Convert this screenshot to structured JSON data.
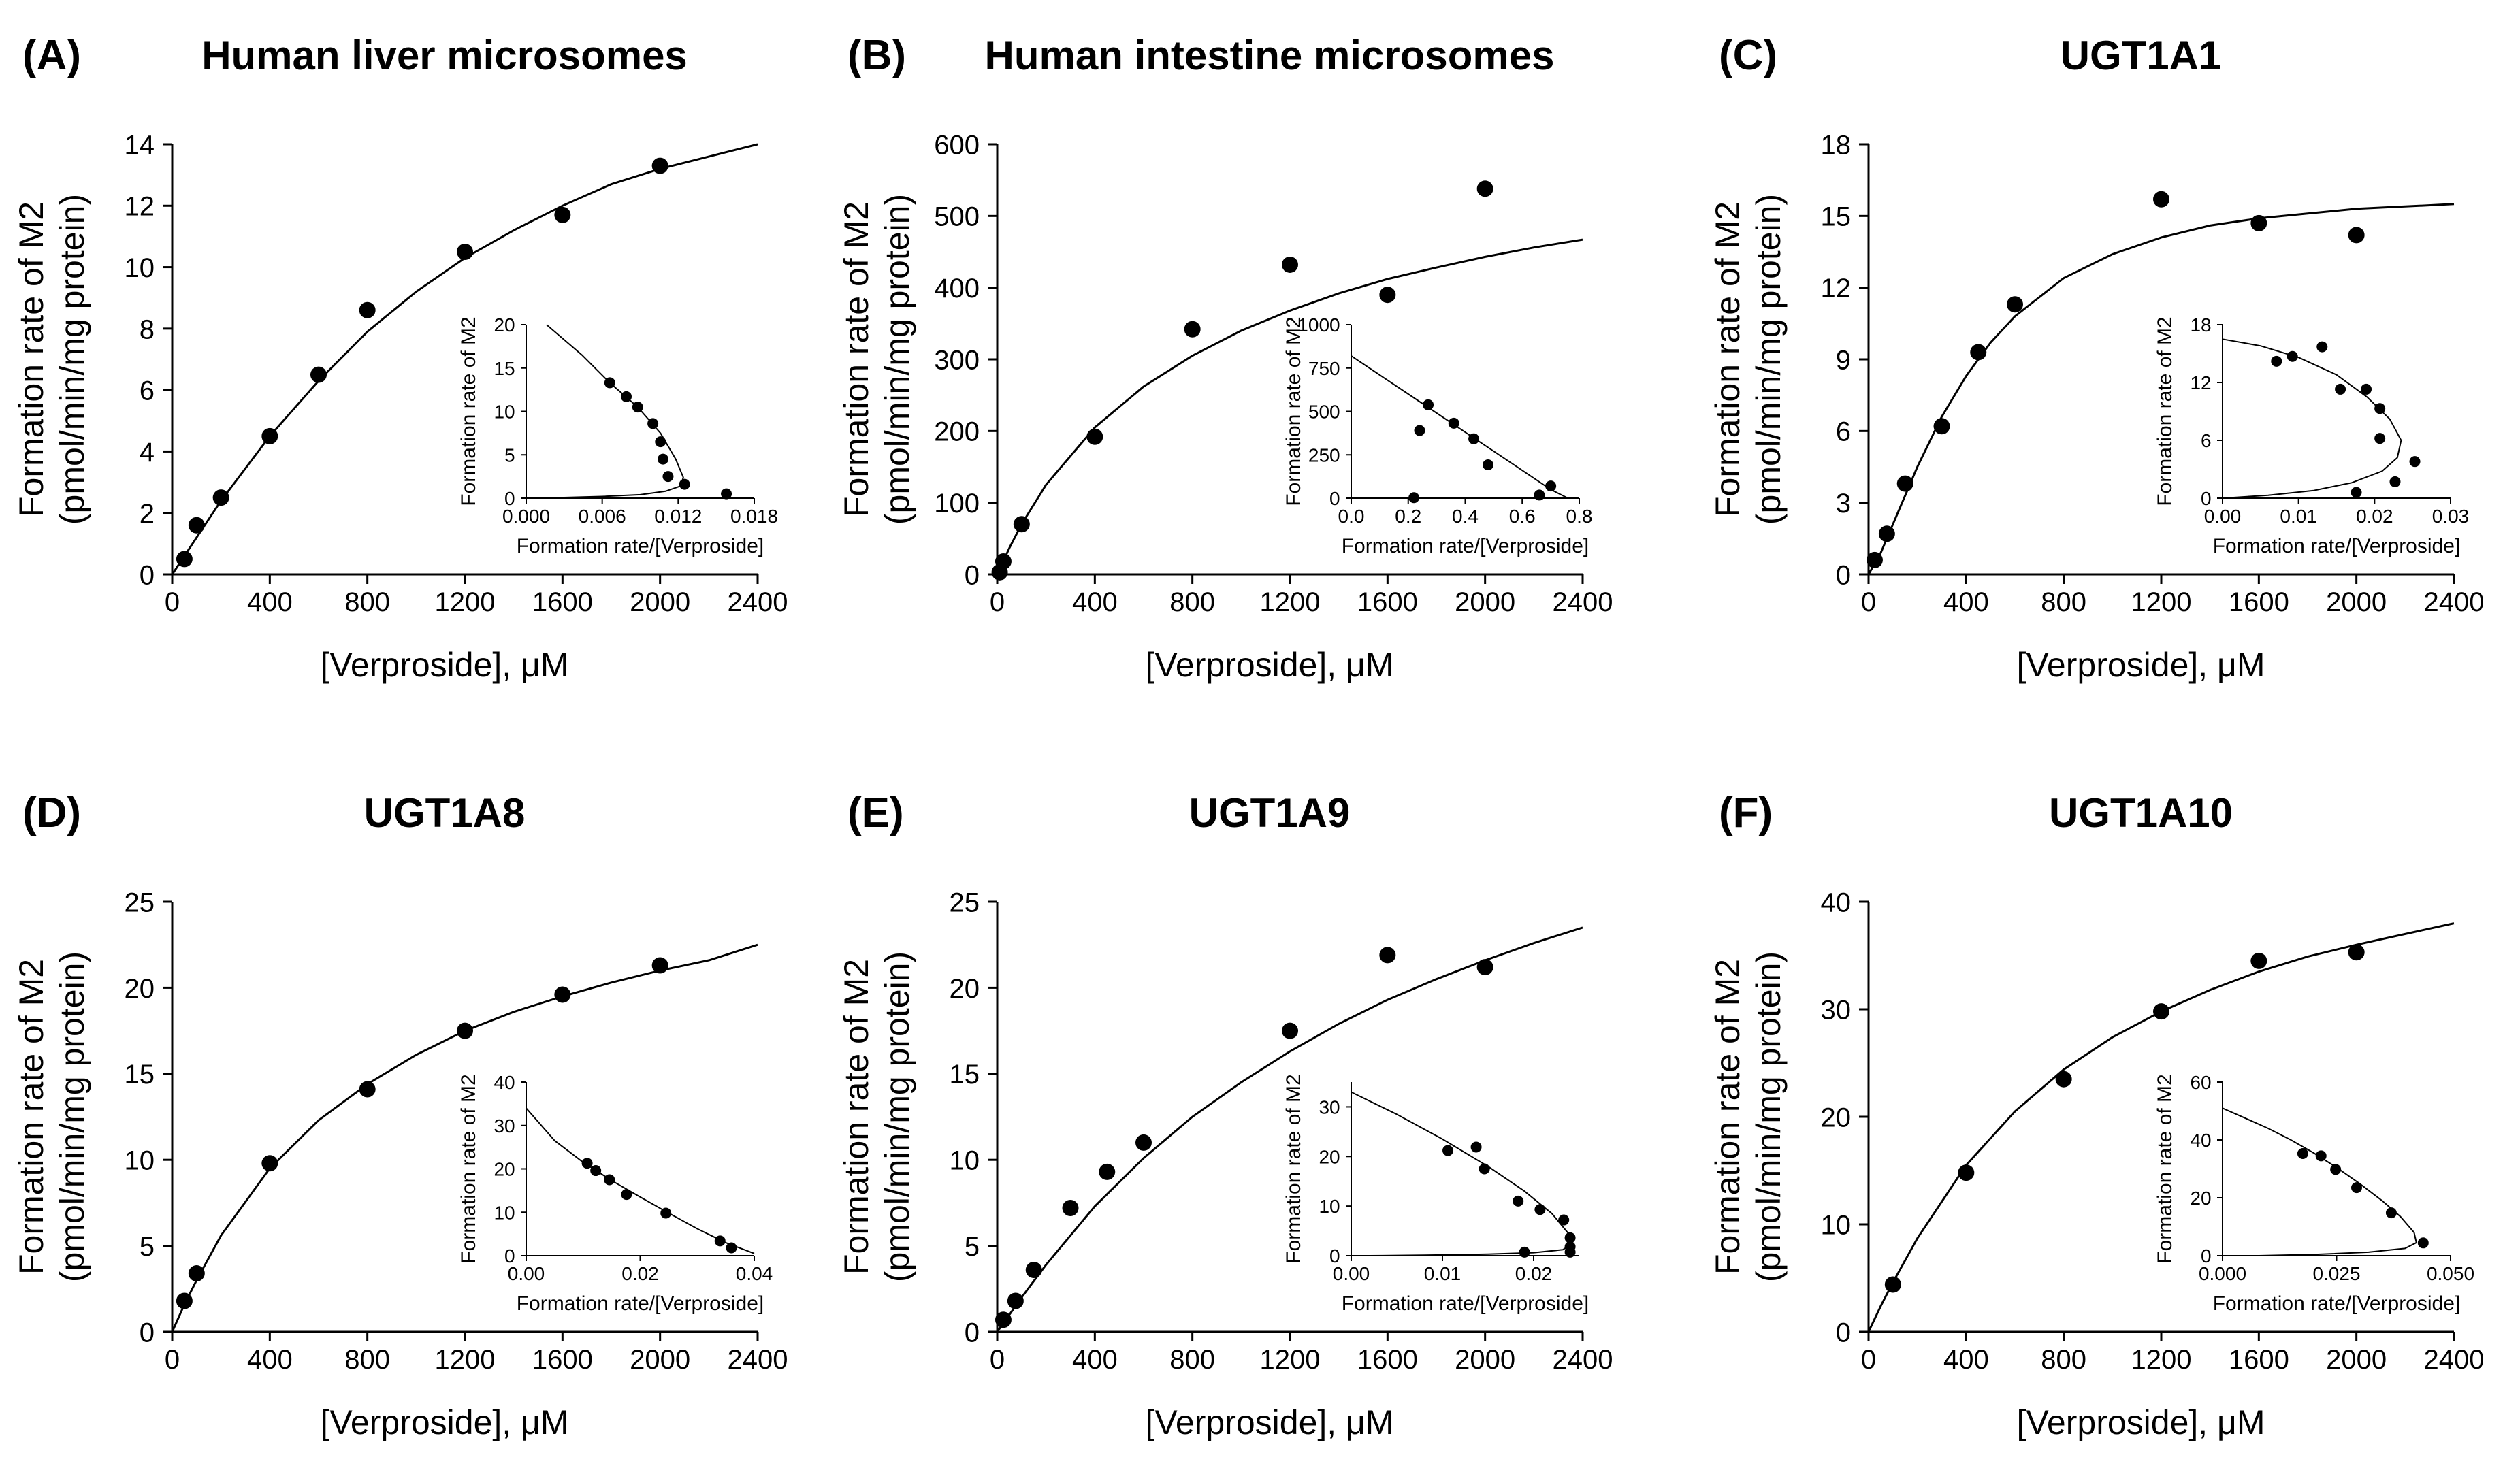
{
  "chart_data": [
    {
      "type": "scatter",
      "panel_label": "(A)",
      "title": "Human liver microsomes",
      "xlabel": "[Verproside], μM",
      "ylabel_line1": "Formation rate of M2",
      "ylabel_line2": "(pmol/min/mg protein)",
      "xlim": [
        0,
        2400
      ],
      "ylim": [
        0,
        14
      ],
      "xticks": [
        0,
        400,
        800,
        1200,
        1600,
        2000,
        2400
      ],
      "xtick_labels": [
        "0",
        "400",
        "800",
        "1200",
        "1600",
        "2000",
        "2400"
      ],
      "yticks": [
        0,
        2,
        4,
        6,
        8,
        10,
        12,
        14
      ],
      "ytick_labels": [
        "0",
        "2",
        "4",
        "6",
        "8",
        "10",
        "12",
        "14"
      ],
      "points": {
        "x": [
          50,
          100,
          200,
          400,
          600,
          800,
          1200,
          1600,
          2000
        ],
        "y": [
          0.5,
          1.6,
          2.5,
          4.5,
          6.5,
          8.6,
          10.5,
          11.7,
          13.3
        ]
      },
      "fit_curve": {
        "x": [
          0,
          100,
          200,
          400,
          600,
          800,
          1000,
          1200,
          1400,
          1600,
          1800,
          2000,
          2200,
          2400
        ],
        "y": [
          0,
          1.2,
          2.4,
          4.5,
          6.3,
          7.9,
          9.2,
          10.3,
          11.2,
          12.0,
          12.7,
          13.2,
          13.6,
          14.0
        ]
      },
      "inset": {
        "xlabel": "Formation rate/[Verproside]",
        "ylabel": "Formation rate of M2",
        "xlim": [
          0,
          0.018
        ],
        "ylim": [
          0,
          20
        ],
        "xticks": [
          0,
          0.006,
          0.012,
          0.018
        ],
        "xtick_labels": [
          "0.000",
          "0.006",
          "0.012",
          "0.018"
        ],
        "yticks": [
          0,
          5,
          10,
          15,
          20
        ],
        "ytick_labels": [
          "0",
          "5",
          "10",
          "15",
          "20"
        ],
        "points": {
          "x": [
            0.0066,
            0.0079,
            0.0088,
            0.01,
            0.0106,
            0.0108,
            0.0112,
            0.0125,
            0.0158
          ],
          "y": [
            13.3,
            11.7,
            10.5,
            8.6,
            6.5,
            4.5,
            2.5,
            1.6,
            0.5
          ]
        },
        "fit_curve": {
          "x": [
            0.0016,
            0.0044,
            0.0066,
            0.0088,
            0.0106,
            0.0118,
            0.0124,
            0.0122,
            0.011,
            0.009,
            0.006,
            0.003,
            0.001
          ],
          "y": [
            20,
            16.5,
            13.3,
            10.5,
            7.5,
            4.5,
            2.4,
            1.4,
            0.8,
            0.4,
            0.2,
            0.08,
            0
          ]
        }
      }
    },
    {
      "type": "scatter",
      "panel_label": "(B)",
      "title": "Human intestine microsomes",
      "xlabel": "[Verproside], μM",
      "ylabel_line1": "Formation rate of M2",
      "ylabel_line2": "(pmol/min/mg protein)",
      "xlim": [
        0,
        2400
      ],
      "ylim": [
        0,
        600
      ],
      "xticks": [
        0,
        400,
        800,
        1200,
        1600,
        2000,
        2400
      ],
      "xtick_labels": [
        "0",
        "400",
        "800",
        "1200",
        "1600",
        "2000",
        "2400"
      ],
      "yticks": [
        0,
        100,
        200,
        300,
        400,
        500,
        600
      ],
      "ytick_labels": [
        "0",
        "100",
        "200",
        "300",
        "400",
        "500",
        "600"
      ],
      "points": {
        "x": [
          10,
          25,
          100,
          400,
          800,
          1200,
          1600,
          2000
        ],
        "y": [
          3,
          18,
          70,
          192,
          342,
          432,
          390,
          538
        ]
      },
      "fit_curve": {
        "x": [
          0,
          50,
          100,
          200,
          400,
          600,
          800,
          1000,
          1200,
          1400,
          1600,
          1800,
          2000,
          2200,
          2400
        ],
        "y": [
          0,
          37,
          70,
          125,
          205,
          262,
          305,
          340,
          368,
          392,
          412,
          428,
          443,
          456,
          467
        ]
      },
      "inset": {
        "xlabel": "Formation rate/[Verproside]",
        "ylabel": "Formation rate of M2",
        "xlim": [
          0,
          0.8
        ],
        "ylim": [
          0,
          1000
        ],
        "xticks": [
          0,
          0.2,
          0.4,
          0.6,
          0.8
        ],
        "xtick_labels": [
          "0.0",
          "0.2",
          "0.4",
          "0.6",
          "0.8"
        ],
        "yticks": [
          0,
          250,
          500,
          750,
          1000
        ],
        "ytick_labels": [
          "0",
          "250",
          "500",
          "750",
          "1000"
        ],
        "points": {
          "x": [
            0.22,
            0.24,
            0.27,
            0.36,
            0.43,
            0.48,
            0.66,
            0.7
          ],
          "y": [
            3,
            390,
            538,
            432,
            342,
            192,
            18,
            70
          ]
        },
        "fit_curve": {
          "x": [
            0,
            0.1,
            0.2,
            0.3,
            0.4,
            0.5,
            0.6,
            0.7,
            0.76
          ],
          "y": [
            820,
            710,
            600,
            490,
            380,
            270,
            160,
            50,
            0
          ]
        }
      }
    },
    {
      "type": "scatter",
      "panel_label": "(C)",
      "title": "UGT1A1",
      "xlabel": "[Verproside], μM",
      "ylabel_line1": "Formation rate of M2",
      "ylabel_line2": "(pmol/min/mg protein)",
      "xlim": [
        0,
        2400
      ],
      "ylim": [
        0,
        18
      ],
      "xticks": [
        0,
        400,
        800,
        1200,
        1600,
        2000,
        2400
      ],
      "xtick_labels": [
        "0",
        "400",
        "800",
        "1200",
        "1600",
        "2000",
        "2400"
      ],
      "yticks": [
        0,
        3,
        6,
        9,
        12,
        15,
        18
      ],
      "ytick_labels": [
        "0",
        "3",
        "6",
        "9",
        "12",
        "15",
        "18"
      ],
      "points": {
        "x": [
          25,
          75,
          150,
          300,
          450,
          600,
          1200,
          1600,
          2000
        ],
        "y": [
          0.6,
          1.7,
          3.8,
          6.2,
          9.3,
          11.3,
          15.7,
          14.7,
          14.2
        ]
      },
      "fit_curve": {
        "x": [
          0,
          50,
          100,
          150,
          200,
          300,
          400,
          500,
          600,
          800,
          1000,
          1200,
          1400,
          1600,
          1800,
          2000,
          2200,
          2400
        ],
        "y": [
          0,
          0.9,
          2.1,
          3.3,
          4.5,
          6.6,
          8.3,
          9.7,
          10.8,
          12.4,
          13.4,
          14.1,
          14.6,
          14.9,
          15.1,
          15.3,
          15.4,
          15.5
        ]
      },
      "inset": {
        "xlabel": "Formation rate/[Verproside]",
        "ylabel": "Formation rate of M2",
        "xlim": [
          0,
          0.03
        ],
        "ylim": [
          0,
          18
        ],
        "xticks": [
          0,
          0.01,
          0.02,
          0.03
        ],
        "xtick_labels": [
          "0.00",
          "0.01",
          "0.02",
          "0.03"
        ],
        "yticks": [
          0,
          6,
          12,
          18
        ],
        "ytick_labels": [
          "0",
          "6",
          "12",
          "18"
        ],
        "points": {
          "x": [
            0.0071,
            0.0092,
            0.0131,
            0.0155,
            0.0189,
            0.0207,
            0.0207,
            0.0227,
            0.0253,
            0.0176
          ],
          "y": [
            14.2,
            14.7,
            15.7,
            11.3,
            11.3,
            9.3,
            6.2,
            1.7,
            3.8,
            0.6
          ]
        },
        "fit_curve": {
          "x": [
            0,
            0.005,
            0.01,
            0.015,
            0.019,
            0.022,
            0.0235,
            0.023,
            0.021,
            0.017,
            0.012,
            0.006,
            0.002,
            0
          ],
          "y": [
            16.5,
            15.8,
            14.6,
            12.8,
            10.5,
            8.2,
            6,
            4.2,
            2.8,
            1.6,
            0.8,
            0.3,
            0.1,
            0
          ]
        }
      }
    },
    {
      "type": "scatter",
      "panel_label": "(D)",
      "title": "UGT1A8",
      "xlabel": "[Verproside], μM",
      "ylabel_line1": "Formation rate of M2",
      "ylabel_line2": "(pmol/min/mg protein)",
      "xlim": [
        0,
        2400
      ],
      "ylim": [
        0,
        25
      ],
      "xticks": [
        0,
        400,
        800,
        1200,
        1600,
        2000,
        2400
      ],
      "xtick_labels": [
        "0",
        "400",
        "800",
        "1200",
        "1600",
        "2000",
        "2400"
      ],
      "yticks": [
        0,
        5,
        10,
        15,
        20,
        25
      ],
      "ytick_labels": [
        "0",
        "5",
        "10",
        "15",
        "20",
        "25"
      ],
      "points": {
        "x": [
          50,
          100,
          400,
          800,
          1200,
          1600,
          2000
        ],
        "y": [
          1.8,
          3.4,
          9.8,
          14.1,
          17.5,
          19.6,
          21.3
        ]
      },
      "fit_curve": {
        "x": [
          0,
          50,
          100,
          200,
          400,
          600,
          800,
          1000,
          1200,
          1400,
          1600,
          1800,
          2000,
          2200,
          2400
        ],
        "y": [
          0,
          1.6,
          3.0,
          5.6,
          9.5,
          12.3,
          14.4,
          16.1,
          17.5,
          18.6,
          19.5,
          20.3,
          21.0,
          21.6,
          22.5
        ]
      },
      "inset": {
        "xlabel": "Formation rate/[Verproside]",
        "ylabel": "Formation rate of M2",
        "xlim": [
          0,
          0.04
        ],
        "ylim": [
          0,
          40
        ],
        "xticks": [
          0,
          0.02,
          0.04
        ],
        "xtick_labels": [
          "0.00",
          "0.02",
          "0.04"
        ],
        "yticks": [
          0,
          10,
          20,
          30,
          40
        ],
        "ytick_labels": [
          "0",
          "10",
          "20",
          "30",
          "40"
        ],
        "points": {
          "x": [
            0.0107,
            0.0122,
            0.0146,
            0.0176,
            0.0245,
            0.034,
            0.036
          ],
          "y": [
            21.3,
            19.6,
            17.5,
            14.1,
            9.8,
            3.4,
            1.8
          ]
        },
        "fit_curve": {
          "x": [
            0,
            0.005,
            0.01,
            0.015,
            0.02,
            0.025,
            0.03,
            0.035,
            0.04
          ],
          "y": [
            34,
            26.5,
            21.5,
            17.3,
            13.5,
            9.8,
            6.2,
            3,
            0.5
          ]
        }
      }
    },
    {
      "type": "scatter",
      "panel_label": "(E)",
      "title": "UGT1A9",
      "xlabel": "[Verproside], μM",
      "ylabel_line1": "Formation rate of M2",
      "ylabel_line2": "(pmol/min/mg protein)",
      "xlim": [
        0,
        2400
      ],
      "ylim": [
        0,
        25
      ],
      "xticks": [
        0,
        400,
        800,
        1200,
        1600,
        2000,
        2400
      ],
      "xtick_labels": [
        "0",
        "400",
        "800",
        "1200",
        "1600",
        "2000",
        "2400"
      ],
      "yticks": [
        0,
        5,
        10,
        15,
        20,
        25
      ],
      "ytick_labels": [
        "0",
        "5",
        "10",
        "15",
        "20",
        "25"
      ],
      "points": {
        "x": [
          25,
          75,
          150,
          300,
          450,
          600,
          1200,
          1600,
          2000
        ],
        "y": [
          0.7,
          1.8,
          3.6,
          7.2,
          9.3,
          11.0,
          17.5,
          21.9,
          21.2
        ]
      },
      "fit_curve": {
        "x": [
          0,
          50,
          100,
          200,
          400,
          600,
          800,
          1000,
          1200,
          1400,
          1600,
          1800,
          2000,
          2200,
          2400
        ],
        "y": [
          0,
          1.0,
          2.0,
          3.9,
          7.3,
          10.1,
          12.5,
          14.5,
          16.3,
          17.9,
          19.3,
          20.5,
          21.6,
          22.6,
          23.5
        ]
      },
      "inset": {
        "xlabel": "Formation rate/[Verproside]",
        "ylabel": "Formation rate of M2",
        "xlim": [
          0,
          0.025
        ],
        "ylim": [
          0,
          35
        ],
        "xticks": [
          0,
          0.01,
          0.02
        ],
        "xtick_labels": [
          "0.00",
          "0.01",
          "0.02"
        ],
        "yticks": [
          0,
          10,
          20,
          30
        ],
        "ytick_labels": [
          "0",
          "10",
          "20",
          "30"
        ],
        "points": {
          "x": [
            0.0106,
            0.0137,
            0.0146,
            0.0183,
            0.0207,
            0.0233,
            0.024,
            0.024,
            0.024,
            0.019
          ],
          "y": [
            21.2,
            21.9,
            17.5,
            11.0,
            9.3,
            7.2,
            3.6,
            1.8,
            0.7,
            0.7
          ]
        },
        "fit_curve": {
          "x": [
            0,
            0.005,
            0.01,
            0.015,
            0.019,
            0.022,
            0.0238,
            0.024,
            0.0232,
            0.02,
            0.015,
            0.008,
            0.002
          ],
          "y": [
            33,
            28.5,
            23.5,
            18,
            13,
            8.5,
            4.5,
            2.2,
            1.2,
            0.6,
            0.3,
            0.1,
            0
          ]
        }
      }
    },
    {
      "type": "scatter",
      "panel_label": "(F)",
      "title": "UGT1A10",
      "xlabel": "[Verproside], μM",
      "ylabel_line1": "Formation rate of M2",
      "ylabel_line2": "(pmol/min/mg protein)",
      "xlim": [
        0,
        2400
      ],
      "ylim": [
        0,
        40
      ],
      "xticks": [
        0,
        400,
        800,
        1200,
        1600,
        2000,
        2400
      ],
      "xtick_labels": [
        "0",
        "400",
        "800",
        "1200",
        "1600",
        "2000",
        "2400"
      ],
      "yticks": [
        0,
        10,
        20,
        30,
        40
      ],
      "ytick_labels": [
        "0",
        "10",
        "20",
        "30",
        "40"
      ],
      "points": {
        "x": [
          100,
          400,
          800,
          1200,
          1600,
          2000
        ],
        "y": [
          4.4,
          14.8,
          23.5,
          29.8,
          34.5,
          35.3
        ]
      },
      "fit_curve": {
        "x": [
          0,
          50,
          100,
          200,
          400,
          600,
          800,
          1000,
          1200,
          1400,
          1600,
          1800,
          2000,
          2200,
          2400
        ],
        "y": [
          0,
          2.4,
          4.6,
          8.7,
          15.5,
          20.5,
          24.4,
          27.4,
          29.8,
          31.8,
          33.5,
          34.9,
          36.0,
          37.0,
          38.0
        ]
      },
      "inset": {
        "xlabel": "Formation rate/[Verproside]",
        "ylabel": "Formation rate of M2",
        "xlim": [
          0,
          0.05
        ],
        "ylim": [
          0,
          60
        ],
        "xticks": [
          0,
          0.025,
          0.05
        ],
        "xtick_labels": [
          "0.000",
          "0.025",
          "0.050"
        ],
        "yticks": [
          0,
          20,
          40,
          60
        ],
        "ytick_labels": [
          "0",
          "20",
          "40",
          "60"
        ],
        "points": {
          "x": [
            0.0176,
            0.0216,
            0.0248,
            0.0294,
            0.037,
            0.044
          ],
          "y": [
            35.3,
            34.5,
            29.8,
            23.5,
            14.8,
            4.4
          ]
        },
        "fit_curve": {
          "x": [
            0,
            0.005,
            0.01,
            0.015,
            0.02,
            0.025,
            0.03,
            0.035,
            0.039,
            0.042,
            0.0425,
            0.04,
            0.032,
            0.02,
            0.008
          ],
          "y": [
            51,
            47.5,
            44,
            40,
            35.5,
            30.5,
            25,
            19,
            13.5,
            8,
            4.5,
            2.5,
            1.2,
            0.4,
            0
          ]
        }
      }
    }
  ]
}
